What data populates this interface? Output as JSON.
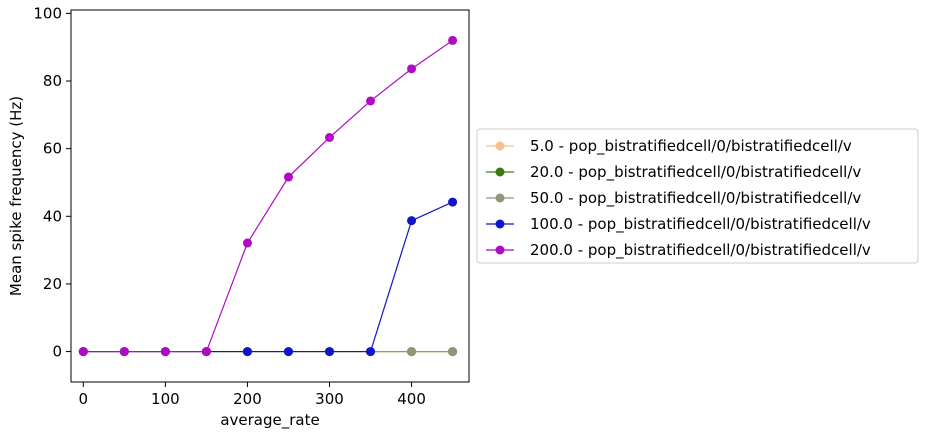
{
  "chart_data": {
    "type": "line",
    "title": "",
    "xlabel": "average_rate",
    "ylabel": "Mean spike frequency (Hz)",
    "xlim": [
      -15,
      470
    ],
    "ylim": [
      -9,
      101
    ],
    "x_ticks": [
      0,
      100,
      200,
      300,
      400
    ],
    "y_ticks": [
      0,
      20,
      40,
      60,
      80,
      100
    ],
    "grid": false,
    "legend_position": "outside-right",
    "x": [
      0,
      50,
      100,
      150,
      200,
      250,
      300,
      350,
      400,
      450
    ],
    "series": [
      {
        "name": "5.0 - pop_bistratifiedcell/0/bistratifiedcell/v",
        "color": "#f5c08f",
        "values": [
          0,
          0,
          0,
          0,
          0,
          0,
          0,
          0,
          0,
          0
        ]
      },
      {
        "name": "20.0 - pop_bistratifiedcell/0/bistratifiedcell/v",
        "color": "#3a7a12",
        "values": [
          0,
          0,
          0,
          0,
          0,
          0,
          0,
          0,
          0,
          0
        ]
      },
      {
        "name": "50.0 - pop_bistratifiedcell/0/bistratifiedcell/v",
        "color": "#93947a",
        "values": [
          0,
          0,
          0,
          0,
          0,
          0,
          0,
          0,
          0,
          0
        ]
      },
      {
        "name": "100.0 - pop_bistratifiedcell/0/bistratifiedcell/v",
        "color": "#1016c8",
        "values": [
          0,
          0,
          0,
          0,
          0,
          0,
          0,
          0,
          38.7,
          44.2
        ]
      },
      {
        "name": "200.0 - pop_bistratifiedcell/0/bistratifiedcell/v",
        "color": "#b00bc4",
        "values": [
          0,
          0,
          0,
          0,
          32.1,
          51.6,
          63.3,
          74.1,
          83.6,
          92.0
        ]
      }
    ]
  }
}
